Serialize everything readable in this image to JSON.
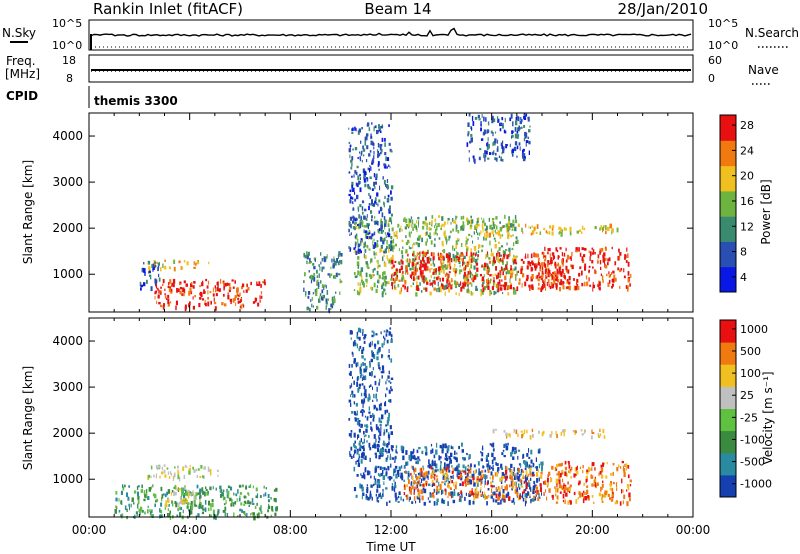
{
  "header": {
    "station": "Rankin Inlet (fitACF)",
    "beam": "Beam 14",
    "date": "28/Jan/2010"
  },
  "aux_panels": {
    "nsky_label": "N.Sky",
    "nsky_ticks": [
      "10^5",
      "10^0"
    ],
    "nsearch_label": "N.Search",
    "nsearch_ticks": [
      "10^5",
      "10^0"
    ],
    "freq_label": "Freq.",
    "freq_unit": "[MHz]",
    "freq_ticks": [
      "18",
      "8"
    ],
    "nave_label": "Nave",
    "nave_ticks": [
      "60",
      "0"
    ],
    "cpid_label": "CPID",
    "cpid_value": "themis 3300"
  },
  "chart_data": [
    {
      "type": "heatmap",
      "name": "power",
      "ylabel": "Slant Range [km]",
      "xlabel": "",
      "xlim": [
        0,
        24
      ],
      "ylim": [
        180,
        4500
      ],
      "y_ticks": [
        "1000",
        "2000",
        "3000",
        "4000"
      ],
      "colorbar": {
        "label": "Power [dB]",
        "ticks": [
          "28",
          "24",
          "20",
          "16",
          "12",
          "8",
          "4"
        ],
        "colors": [
          "#0a18e6",
          "#2a4fb3",
          "#3a8a70",
          "#6db33f",
          "#f0c020",
          "#f07a10",
          "#e81010"
        ]
      },
      "blobs": [
        {
          "t0": 2.6,
          "t1": 7.0,
          "r0": 300,
          "r1": 900,
          "level": 6
        },
        {
          "t0": 2.3,
          "t1": 4.8,
          "r0": 1150,
          "r1": 1320,
          "level": 4
        },
        {
          "t0": 2.0,
          "t1": 2.8,
          "r0": 700,
          "r1": 1300,
          "level": 1
        },
        {
          "t0": 8.5,
          "t1": 10.0,
          "r0": 250,
          "r1": 1500,
          "level": 2
        },
        {
          "t0": 10.5,
          "t1": 17.0,
          "r0": 600,
          "r1": 2300,
          "level": 3
        },
        {
          "t0": 12.0,
          "t1": 19.0,
          "r0": 700,
          "r1": 1500,
          "level": 6
        },
        {
          "t0": 17.5,
          "t1": 21.5,
          "r0": 700,
          "r1": 1600,
          "level": 6
        },
        {
          "t0": 15.5,
          "t1": 21.0,
          "r0": 1900,
          "r1": 2100,
          "level": 4
        },
        {
          "t0": 10.3,
          "t1": 12.0,
          "r0": 1500,
          "r1": 4300,
          "level": 1
        },
        {
          "t0": 15.0,
          "t1": 17.5,
          "r0": 3500,
          "r1": 4500,
          "level": 1
        }
      ]
    },
    {
      "type": "heatmap",
      "name": "velocity",
      "ylabel": "Slant Range [km]",
      "xlabel": "Time UT",
      "xlim": [
        0,
        24
      ],
      "ylim": [
        180,
        4500
      ],
      "x_ticks": [
        "00:00",
        "04:00",
        "08:00",
        "12:00",
        "16:00",
        "20:00",
        "00:00"
      ],
      "y_ticks": [
        "1000",
        "2000",
        "3000",
        "4000"
      ],
      "colorbar": {
        "label": "Velocity [m s⁻¹]",
        "ticks": [
          "1000",
          "500",
          "100",
          "25",
          "-25",
          "-100",
          "-500",
          "-1000"
        ],
        "colors": [
          "#1540b0",
          "#2a8aa0",
          "#3a8a40",
          "#60c040",
          "#c0c0c0",
          "#f0c020",
          "#f07a10",
          "#e81010"
        ]
      },
      "blobs": [
        {
          "t0": 1.0,
          "t1": 7.5,
          "r0": 200,
          "r1": 900,
          "level": 2
        },
        {
          "t0": 2.3,
          "t1": 5.2,
          "r0": 1050,
          "r1": 1350,
          "level": 4
        },
        {
          "t0": 3.0,
          "t1": 4.5,
          "r0": 400,
          "r1": 900,
          "level": 4
        },
        {
          "t0": 10.5,
          "t1": 18.0,
          "r0": 500,
          "r1": 1800,
          "level": 0
        },
        {
          "t0": 12.5,
          "t1": 19.0,
          "r0": 600,
          "r1": 1300,
          "level": 6
        },
        {
          "t0": 18.5,
          "t1": 21.5,
          "r0": 500,
          "r1": 1400,
          "level": 6
        },
        {
          "t0": 16.0,
          "t1": 21.0,
          "r0": 1950,
          "r1": 2100,
          "level": 5
        },
        {
          "t0": 10.3,
          "t1": 12.0,
          "r0": 1500,
          "r1": 4300,
          "level": 0
        }
      ]
    }
  ]
}
